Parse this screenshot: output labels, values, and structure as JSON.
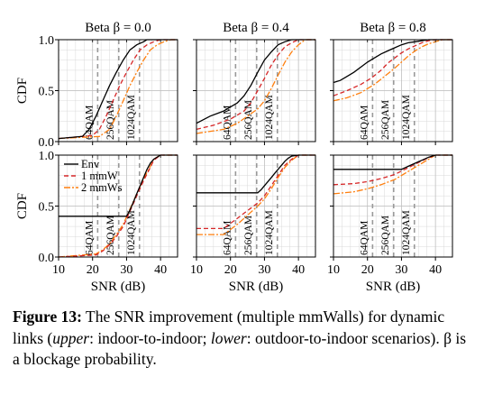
{
  "caption": {
    "label": "Figure 13:",
    "text_1": " The SNR improvement (multiple mmWalls) for dynamic links (",
    "upper": "upper",
    "text_2": ": indoor-to-indoor; ",
    "lower": "lower",
    "text_3": ": outdoor-to-indoor scenarios). β is a blockage probability."
  },
  "colors": {
    "env": "#000000",
    "mw1": "#d62728",
    "mw2": "#ff7f0e",
    "ref": "#999999",
    "grid": "#d9d9d9"
  },
  "chart_data": [
    {
      "type": "line",
      "panel": "upper-left",
      "title": "Beta β = 0.0",
      "xlabel": "",
      "ylabel": "CDF",
      "xlim": [
        10,
        45
      ],
      "ylim": [
        0,
        1
      ],
      "yticks": [
        "0.0",
        "0.5",
        "1.0"
      ],
      "xticks": [],
      "legend": null,
      "ref_lines": [
        {
          "x": 21.5,
          "label": "64QAM"
        },
        {
          "x": 27.7,
          "label": "256QAM"
        },
        {
          "x": 33.8,
          "label": "1024QAM"
        }
      ],
      "series": [
        {
          "key": "env",
          "x": [
            10,
            17,
            19,
            21,
            23,
            25,
            27,
            29,
            31,
            33,
            35,
            36,
            45
          ],
          "y": [
            0.03,
            0.05,
            0.12,
            0.25,
            0.4,
            0.55,
            0.68,
            0.8,
            0.9,
            0.95,
            0.98,
            1.0,
            1.0
          ]
        },
        {
          "key": "mw1",
          "x": [
            10,
            20,
            22,
            24,
            26,
            28,
            30,
            32,
            34,
            36,
            38,
            40,
            45
          ],
          "y": [
            0.03,
            0.06,
            0.12,
            0.25,
            0.4,
            0.55,
            0.68,
            0.8,
            0.9,
            0.95,
            0.98,
            1.0,
            1.0
          ]
        },
        {
          "key": "mw2",
          "x": [
            10,
            22,
            25,
            27,
            29,
            31,
            33,
            35,
            37,
            39,
            41,
            43,
            45
          ],
          "y": [
            0.03,
            0.05,
            0.12,
            0.25,
            0.4,
            0.55,
            0.68,
            0.8,
            0.9,
            0.95,
            0.98,
            1.0,
            1.0
          ]
        }
      ]
    },
    {
      "type": "line",
      "panel": "upper-middle",
      "title": "Beta β = 0.4",
      "xlabel": "",
      "ylabel": "",
      "xlim": [
        10,
        45
      ],
      "ylim": [
        0,
        1
      ],
      "yticks": [],
      "xticks": [],
      "legend": null,
      "ref_lines": [
        {
          "x": 21.5,
          "label": "64QAM"
        },
        {
          "x": 27.7,
          "label": "256QAM"
        },
        {
          "x": 33.8,
          "label": "1024QAM"
        }
      ],
      "series": [
        {
          "key": "env",
          "x": [
            10,
            14,
            18,
            22,
            24,
            26,
            28,
            30,
            32,
            34,
            36,
            38,
            45
          ],
          "y": [
            0.18,
            0.25,
            0.3,
            0.38,
            0.45,
            0.55,
            0.68,
            0.8,
            0.88,
            0.95,
            0.98,
            1.0,
            1.0
          ]
        },
        {
          "key": "mw1",
          "x": [
            10,
            15,
            20,
            24,
            26,
            28,
            30,
            32,
            34,
            36,
            38,
            40,
            45
          ],
          "y": [
            0.12,
            0.16,
            0.22,
            0.3,
            0.38,
            0.5,
            0.62,
            0.75,
            0.85,
            0.93,
            0.97,
            1.0,
            1.0
          ]
        },
        {
          "key": "mw2",
          "x": [
            10,
            18,
            22,
            25,
            28,
            30,
            32,
            34,
            36,
            38,
            40,
            42,
            45
          ],
          "y": [
            0.08,
            0.12,
            0.18,
            0.25,
            0.32,
            0.4,
            0.52,
            0.65,
            0.78,
            0.88,
            0.95,
            1.0,
            1.0
          ]
        }
      ]
    },
    {
      "type": "line",
      "panel": "upper-right",
      "title": "Beta β = 0.8",
      "xlabel": "",
      "ylabel": "",
      "xlim": [
        10,
        45
      ],
      "ylim": [
        0,
        1
      ],
      "yticks": [],
      "xticks": [],
      "legend": null,
      "ref_lines": [
        {
          "x": 21.5,
          "label": "64QAM"
        },
        {
          "x": 27.7,
          "label": "256QAM"
        },
        {
          "x": 33.8,
          "label": "1024QAM"
        }
      ],
      "series": [
        {
          "key": "env",
          "x": [
            10,
            12,
            14,
            16,
            18,
            20,
            22,
            24,
            26,
            28,
            30,
            32,
            34,
            36,
            38,
            40,
            45
          ],
          "y": [
            0.58,
            0.6,
            0.64,
            0.68,
            0.73,
            0.78,
            0.82,
            0.86,
            0.89,
            0.92,
            0.95,
            0.97,
            0.98,
            0.99,
            1.0,
            1.0,
            1.0
          ]
        },
        {
          "key": "mw1",
          "x": [
            10,
            14,
            18,
            21,
            24,
            26,
            28,
            30,
            32,
            34,
            36,
            38,
            40,
            45
          ],
          "y": [
            0.45,
            0.5,
            0.56,
            0.62,
            0.7,
            0.77,
            0.82,
            0.87,
            0.91,
            0.94,
            0.97,
            0.99,
            1.0,
            1.0
          ]
        },
        {
          "key": "mw2",
          "x": [
            10,
            14,
            18,
            22,
            25,
            28,
            30,
            32,
            34,
            36,
            38,
            40,
            42,
            45
          ],
          "y": [
            0.4,
            0.43,
            0.48,
            0.56,
            0.64,
            0.72,
            0.78,
            0.84,
            0.89,
            0.93,
            0.96,
            0.98,
            1.0,
            1.0
          ]
        }
      ]
    },
    {
      "type": "line",
      "panel": "lower-left",
      "title": "",
      "xlabel": "SNR (dB)",
      "ylabel": "CDF",
      "xlim": [
        10,
        45
      ],
      "ylim": [
        0,
        1
      ],
      "yticks": [
        "0.0",
        "0.5",
        "1.0"
      ],
      "xticks": [
        "10",
        "20",
        "30",
        "40"
      ],
      "legend": {
        "position": "top-left",
        "entries": [
          {
            "key": "env",
            "label": "Env"
          },
          {
            "key": "mw1",
            "label": "1 mmW"
          },
          {
            "key": "mw2",
            "label": "2 mmWs"
          }
        ]
      },
      "ref_lines": [
        {
          "x": 21.5,
          "label": "64QAM"
        },
        {
          "x": 27.7,
          "label": "256QAM"
        },
        {
          "x": 33.8,
          "label": "1024QAM"
        }
      ],
      "series": [
        {
          "key": "env",
          "x": [
            10,
            30,
            31,
            32,
            33,
            34,
            35,
            36,
            37,
            38,
            40,
            45
          ],
          "y": [
            0.4,
            0.4,
            0.46,
            0.54,
            0.62,
            0.7,
            0.78,
            0.86,
            0.92,
            0.96,
            1.0,
            1.0
          ]
        },
        {
          "key": "mw1",
          "x": [
            10,
            21,
            23,
            25,
            27,
            29,
            31,
            33,
            35,
            37,
            38,
            40,
            45
          ],
          "y": [
            0.0,
            0.02,
            0.06,
            0.12,
            0.2,
            0.3,
            0.45,
            0.6,
            0.75,
            0.88,
            0.95,
            1.0,
            1.0
          ]
        },
        {
          "key": "mw2",
          "x": [
            10,
            21,
            23,
            25,
            27,
            29,
            31,
            33,
            35,
            37,
            38,
            40,
            45
          ],
          "y": [
            0.0,
            0.03,
            0.07,
            0.13,
            0.22,
            0.32,
            0.47,
            0.62,
            0.77,
            0.89,
            0.96,
            1.0,
            1.0
          ]
        }
      ]
    },
    {
      "type": "line",
      "panel": "lower-middle",
      "title": "",
      "xlabel": "SNR (dB)",
      "ylabel": "",
      "xlim": [
        10,
        45
      ],
      "ylim": [
        0,
        1
      ],
      "yticks": [],
      "xticks": [
        "10",
        "20",
        "30",
        "40"
      ],
      "legend": null,
      "ref_lines": [
        {
          "x": 21.5,
          "label": "64QAM"
        },
        {
          "x": 27.7,
          "label": "256QAM"
        },
        {
          "x": 33.8,
          "label": "1024QAM"
        }
      ],
      "series": [
        {
          "key": "env",
          "x": [
            10,
            28,
            29,
            30,
            31,
            32,
            33,
            34,
            35,
            36,
            37,
            38,
            40,
            45
          ],
          "y": [
            0.63,
            0.63,
            0.66,
            0.7,
            0.74,
            0.78,
            0.82,
            0.86,
            0.9,
            0.94,
            0.97,
            0.99,
            1.0,
            1.0
          ]
        },
        {
          "key": "mw1",
          "x": [
            10,
            18,
            20,
            22,
            24,
            26,
            28,
            30,
            32,
            34,
            36,
            38,
            40,
            45
          ],
          "y": [
            0.28,
            0.28,
            0.33,
            0.38,
            0.43,
            0.48,
            0.53,
            0.6,
            0.7,
            0.8,
            0.9,
            0.96,
            1.0,
            1.0
          ]
        },
        {
          "key": "mw2",
          "x": [
            10,
            18,
            20,
            22,
            24,
            26,
            28,
            30,
            32,
            34,
            36,
            38,
            40,
            45
          ],
          "y": [
            0.22,
            0.22,
            0.27,
            0.32,
            0.38,
            0.44,
            0.5,
            0.57,
            0.67,
            0.78,
            0.88,
            0.95,
            1.0,
            1.0
          ]
        }
      ]
    },
    {
      "type": "line",
      "panel": "lower-right",
      "title": "",
      "xlabel": "SNR (dB)",
      "ylabel": "",
      "xlim": [
        10,
        45
      ],
      "ylim": [
        0,
        1
      ],
      "yticks": [],
      "xticks": [
        "10",
        "20",
        "30",
        "40"
      ],
      "legend": null,
      "ref_lines": [
        {
          "x": 21.5,
          "label": "64QAM"
        },
        {
          "x": 27.7,
          "label": "256QAM"
        },
        {
          "x": 33.8,
          "label": "1024QAM"
        }
      ],
      "series": [
        {
          "key": "env",
          "x": [
            10,
            30,
            32,
            34,
            36,
            38,
            40,
            45
          ],
          "y": [
            0.86,
            0.86,
            0.89,
            0.92,
            0.95,
            0.98,
            1.0,
            1.0
          ]
        },
        {
          "key": "mw1",
          "x": [
            10,
            16,
            20,
            24,
            28,
            31,
            34,
            37,
            40,
            45
          ],
          "y": [
            0.71,
            0.72,
            0.74,
            0.77,
            0.81,
            0.86,
            0.91,
            0.96,
            1.0,
            1.0
          ]
        },
        {
          "key": "mw2",
          "x": [
            10,
            16,
            20,
            24,
            28,
            31,
            34,
            37,
            40,
            45
          ],
          "y": [
            0.62,
            0.64,
            0.67,
            0.71,
            0.76,
            0.82,
            0.88,
            0.94,
            1.0,
            1.0
          ]
        }
      ]
    }
  ]
}
